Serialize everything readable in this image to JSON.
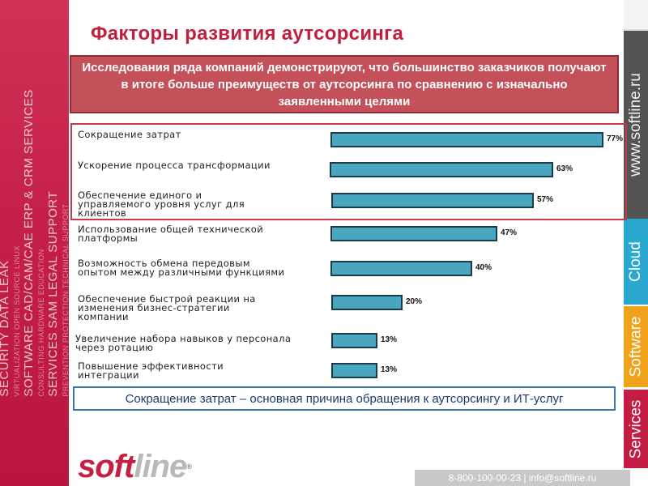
{
  "title": "Факторы развития аутсорсинга",
  "banner_text": "Исследования ряда компаний демонстрируют, что большинство заказчиков получают в итоге больше преимуществ от аутсорсинга по сравнению с изначально заявленными целями",
  "conclusion": "Сокращение затрат – основная причина обращения к аутсорсингу  и  ИТ-услуг",
  "left_banner_lines": [
    {
      "text": "SECURITY  DATA LEAK",
      "small": false
    },
    {
      "text": "VIRTUALIZATION  OPEN SOURCE  LINUX",
      "small": true
    },
    {
      "text": "SOFTWARE  CAD/CAM/CAE  ERP & CRM  SERVICES",
      "small": false
    },
    {
      "text": "CONSULTING  HARDWARE  EDUCATION",
      "small": true
    },
    {
      "text": "SERVICES  SAM  LEGAL SUPPORT",
      "small": false
    },
    {
      "text": "PREVENTION  PROTECTION  TECHNICAL SUPPORT",
      "small": true
    }
  ],
  "right_bar": {
    "url": "www.softline.ru",
    "cloud": "Cloud",
    "software": "Software",
    "services": "Services"
  },
  "logo": {
    "soft": "soft",
    "line": "line",
    "reg": "®"
  },
  "contacts": "8-800-100-00-23 | info@softline.ru",
  "colors": {
    "brand_red": "#c0203f",
    "banner_red": "#c4505a",
    "bar_fill": "#4aa5bf",
    "cloud_blue": "#2aa8cf",
    "software_orange": "#f1a21b",
    "services_red": "#c41d44"
  },
  "chart_data": {
    "type": "bar",
    "orientation": "horizontal",
    "title": "",
    "xlabel": "",
    "ylabel": "",
    "xlim": [
      0,
      100
    ],
    "grid": false,
    "categories": [
      "Сокращение затрат",
      "Ускорение процесса трансформации",
      "Обеспечение единого и управляемого уровня услуг для клиентов",
      "Использование общей технической платформы",
      "Возможность обмена передовым опытом между различными функциями",
      "Обеспечение быстрой реакции на изменения бизнес-стратегии компании",
      "Увеличение набора навыков у персонала через ротацию",
      "Повышение эффективности интеграции"
    ],
    "category_lines": [
      [
        "Сокращение затрат"
      ],
      [
        "Ускорение процесса трансформации"
      ],
      [
        "Обеспечение единого и",
        "управляемого уровня услуг для",
        "клиентов"
      ],
      [
        "Использование общей технической",
        "платформы"
      ],
      [
        "Возможность обмена передовым",
        "опытом между различными функциями"
      ],
      [
        "Обеспечение быстрой реакции на",
        "изменения бизнес-стратегии",
        "компании"
      ],
      [
        "Увеличение набора навыков у персонала",
        "через ротацию"
      ],
      [
        "Повышение эффективности",
        "интеграции"
      ]
    ],
    "values": [
      77,
      63,
      57,
      47,
      40,
      20,
      13,
      13
    ],
    "value_labels": [
      "77%",
      "63%",
      "57%",
      "47%",
      "40%",
      "20%",
      "13%",
      "13%"
    ]
  }
}
